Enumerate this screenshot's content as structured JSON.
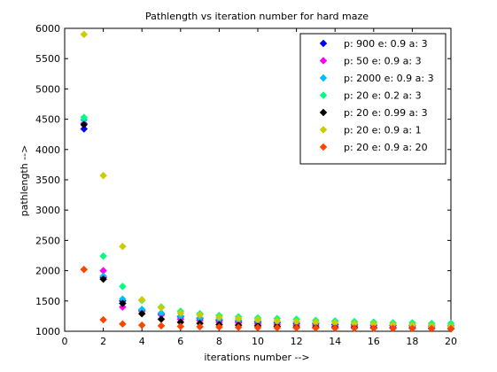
{
  "chart_data": {
    "type": "scatter",
    "title": "Pathlength vs iteration number for hard maze",
    "xlabel": "iterations number -->",
    "ylabel": "pathlength -->",
    "xlim": [
      0,
      20
    ],
    "ylim": [
      1000,
      6000
    ],
    "xticks": [
      0,
      2,
      4,
      6,
      8,
      10,
      12,
      14,
      16,
      18,
      20
    ],
    "yticks": [
      1000,
      1500,
      2000,
      2500,
      3000,
      3500,
      4000,
      4500,
      5000,
      5500,
      6000
    ],
    "grid": false,
    "legend_position": "top-right",
    "marker": "diamond",
    "x": [
      1,
      2,
      3,
      4,
      5,
      6,
      7,
      8,
      9,
      10,
      11,
      12,
      13,
      14,
      15,
      16,
      17,
      18,
      19,
      20
    ],
    "series": [
      {
        "name": "p: 900 e: 0.9 a: 3",
        "color": "#0000ff",
        "values": [
          4340,
          1890,
          1500,
          1350,
          1290,
          1240,
          1210,
          1180,
          1160,
          1150,
          1140,
          1130,
          1120,
          1110,
          1105,
          1100,
          1095,
          1090,
          1085,
          1080
        ]
      },
      {
        "name": "p: 50 e: 0.9 a: 3",
        "color": "#ff00ff",
        "values": [
          4430,
          2000,
          1400,
          1330,
          1270,
          1200,
          1180,
          1150,
          1140,
          1120,
          1110,
          1100,
          1090,
          1080,
          1075,
          1070,
          1065,
          1060,
          1055,
          1050
        ]
      },
      {
        "name": "p: 2000 e: 0.9 a: 3",
        "color": "#00bfff",
        "values": [
          4490,
          1910,
          1530,
          1360,
          1300,
          1250,
          1220,
          1200,
          1180,
          1170,
          1160,
          1150,
          1140,
          1130,
          1120,
          1115,
          1110,
          1105,
          1100,
          1095
        ]
      },
      {
        "name": "p: 20 e: 0.2 a: 3",
        "color": "#00ff7f",
        "values": [
          4530,
          2240,
          1740,
          1510,
          1400,
          1330,
          1290,
          1260,
          1240,
          1220,
          1210,
          1200,
          1180,
          1170,
          1160,
          1150,
          1140,
          1140,
          1130,
          1130
        ]
      },
      {
        "name": "p: 20 e: 0.99 a: 3",
        "color": "#000000",
        "values": [
          4410,
          1860,
          1460,
          1290,
          1200,
          1150,
          1130,
          1110,
          1100,
          1090,
          1080,
          1070,
          1065,
          1060,
          1060,
          1055,
          1050,
          1050,
          1045,
          1040
        ]
      },
      {
        "name": "p: 20 e: 0.9 a: 1",
        "color": "#cccc00",
        "values": [
          5900,
          3570,
          2400,
          1520,
          1390,
          1300,
          1270,
          1230,
          1210,
          1190,
          1170,
          1160,
          1150,
          1140,
          1130,
          1120,
          1110,
          1100,
          1090,
          1080
        ]
      },
      {
        "name": "p: 20 e: 0.9 a: 20",
        "color": "#ff4500",
        "values": [
          2020,
          1190,
          1120,
          1100,
          1090,
          1080,
          1075,
          1070,
          1065,
          1060,
          1058,
          1056,
          1054,
          1052,
          1050,
          1050,
          1048,
          1046,
          1045,
          1044
        ]
      }
    ]
  }
}
